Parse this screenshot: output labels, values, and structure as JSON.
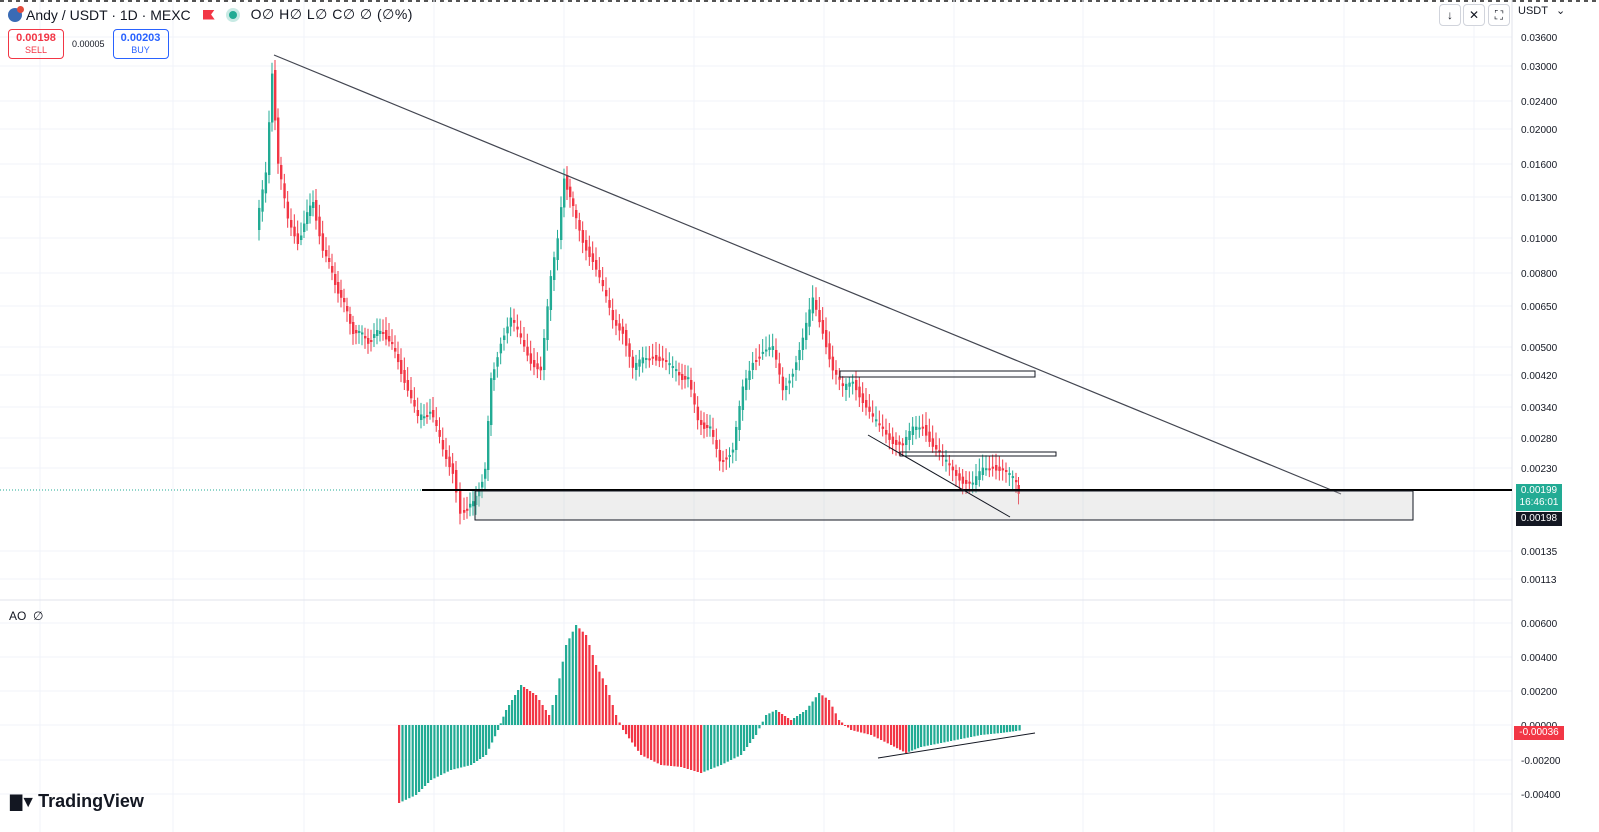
{
  "legend": {
    "symbol": "Andy / USDT · 1D · MEXC",
    "ohlc": "O∅ H∅ L∅ C∅ ∅ (∅%)"
  },
  "trade": {
    "sell_price": "0.00198",
    "sell_label": "SELL",
    "spread": "0.00005",
    "buy_price": "0.00203",
    "buy_label": "BUY"
  },
  "toolbar": {
    "currency": "USDT",
    "currency_chevron": "chevron-down-icon",
    "download_icon": "arrow-down-icon",
    "collapse_icon": "collapse-icon",
    "fullscreen_icon": "fullscreen-icon"
  },
  "price_axis": {
    "ticks": [
      "0.03600",
      "0.03000",
      "0.02400",
      "0.02000",
      "0.01600",
      "0.01300",
      "0.01000",
      "0.00800",
      "0.00650",
      "0.00500",
      "0.00420",
      "0.00340",
      "0.00280",
      "0.00230",
      "0.00135",
      "0.00113"
    ],
    "last_price": "0.00199",
    "countdown": "16:46:01",
    "crosshair_price": "0.00198",
    "colors": {
      "last_price_bg": "#22ab94",
      "crosshair_bg": "#131722"
    }
  },
  "ao": {
    "label": "AO",
    "value_symbol": "∅",
    "ticks": [
      "0.00600",
      "0.00400",
      "0.00200",
      "0.00000",
      "-0.00200",
      "-0.00400"
    ],
    "current_value": "-0.00036",
    "colors": {
      "up": "#22ab94",
      "down": "#f23645"
    }
  },
  "watermark": {
    "text": "TradingView"
  },
  "colors": {
    "up": "#22ab94",
    "down": "#f23645",
    "line": "#434651"
  }
}
